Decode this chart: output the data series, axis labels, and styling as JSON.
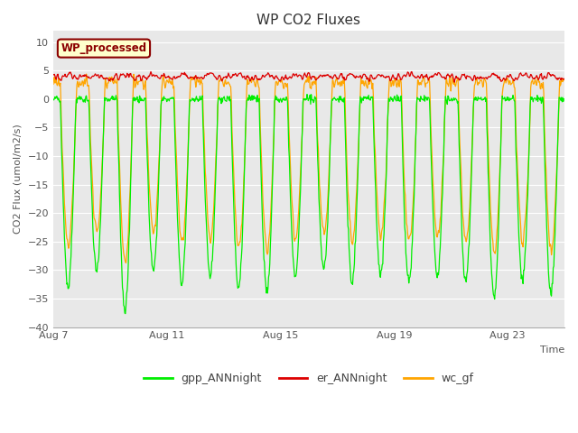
{
  "title": "WP CO2 Fluxes",
  "xlabel": "Time",
  "ylabel_display": "CO2 Flux (umol/m2/s)",
  "ylim": [
    -40,
    12
  ],
  "yticks": [
    -40,
    -35,
    -30,
    -25,
    -20,
    -15,
    -10,
    -5,
    0,
    5,
    10
  ],
  "x_start_day": 7,
  "n_days": 18,
  "pts_per_day": 48,
  "xtick_days": [
    7,
    11,
    15,
    19,
    23
  ],
  "xtick_labels": [
    "Aug 7",
    "Aug 11",
    "Aug 15",
    "Aug 19",
    "Aug 23"
  ],
  "gpp_color": "#00EE00",
  "er_color": "#DD0000",
  "wc_color": "#FFA500",
  "fig_bg_color": "#FFFFFF",
  "plot_bg_color": "#E8E8E8",
  "annotation_text": "WP_processed",
  "annotation_bg": "#FFFFCC",
  "annotation_border": "#8B0000",
  "annotation_text_color": "#8B0000",
  "legend_labels": [
    "gpp_ANNnight",
    "er_ANNnight",
    "wc_gf"
  ],
  "legend_colors": [
    "#00EE00",
    "#DD0000",
    "#FFA500"
  ],
  "title_fontsize": 11,
  "axis_label_fontsize": 8,
  "tick_fontsize": 8,
  "legend_fontsize": 9
}
